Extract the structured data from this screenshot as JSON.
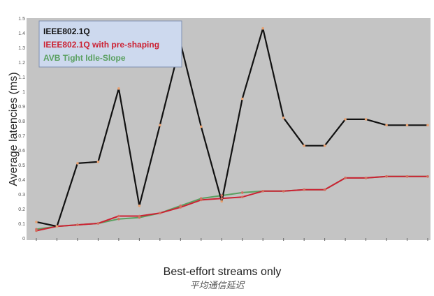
{
  "caption": "平均通信延迟",
  "chart_data": {
    "type": "line",
    "xlabel": "Best-effort streams only",
    "ylabel": "Average latencies (ms)",
    "ylim": [
      0,
      1.5
    ],
    "yticks": [
      "0",
      "0.1",
      "0.2",
      "0.3",
      "0.4",
      "0.5",
      "0.6",
      "0.7",
      "0.8",
      "0.9",
      "1",
      "1.1",
      "1.2",
      "1.3",
      "1.4",
      "1.5"
    ],
    "categories": [
      "",
      "",
      "",
      "",
      "",
      "",
      "",
      "",
      "",
      "",
      "",
      "",
      "",
      "",
      "",
      "",
      "",
      "",
      "",
      ""
    ],
    "grid": false,
    "legend_position": "top-left",
    "series": [
      {
        "name": "IEEE802.1Q",
        "color": "#111111",
        "values": [
          0.11,
          0.08,
          0.51,
          0.52,
          1.02,
          0.22,
          0.77,
          1.33,
          0.76,
          0.25,
          0.95,
          1.43,
          0.82,
          0.63,
          0.63,
          0.81,
          0.81,
          0.77,
          0.77,
          0.77
        ]
      },
      {
        "name": "IEEE802.1Q with pre-shaping",
        "color": "#cc2233",
        "values": [
          0.05,
          0.08,
          0.09,
          0.1,
          0.15,
          0.15,
          0.17,
          0.21,
          0.26,
          0.27,
          0.28,
          0.32,
          0.32,
          0.33,
          0.33,
          0.41,
          0.41,
          0.42,
          0.42,
          0.42
        ]
      },
      {
        "name": "AVB Tight Idle-Slope",
        "color": "#5aa060",
        "values": [
          0.06,
          0.08,
          0.09,
          0.1,
          0.13,
          0.14,
          0.17,
          0.22,
          0.27,
          0.29,
          0.31,
          0.32,
          0.32,
          0.33,
          0.33,
          0.41,
          0.41,
          0.42,
          0.42,
          0.42
        ]
      }
    ]
  }
}
